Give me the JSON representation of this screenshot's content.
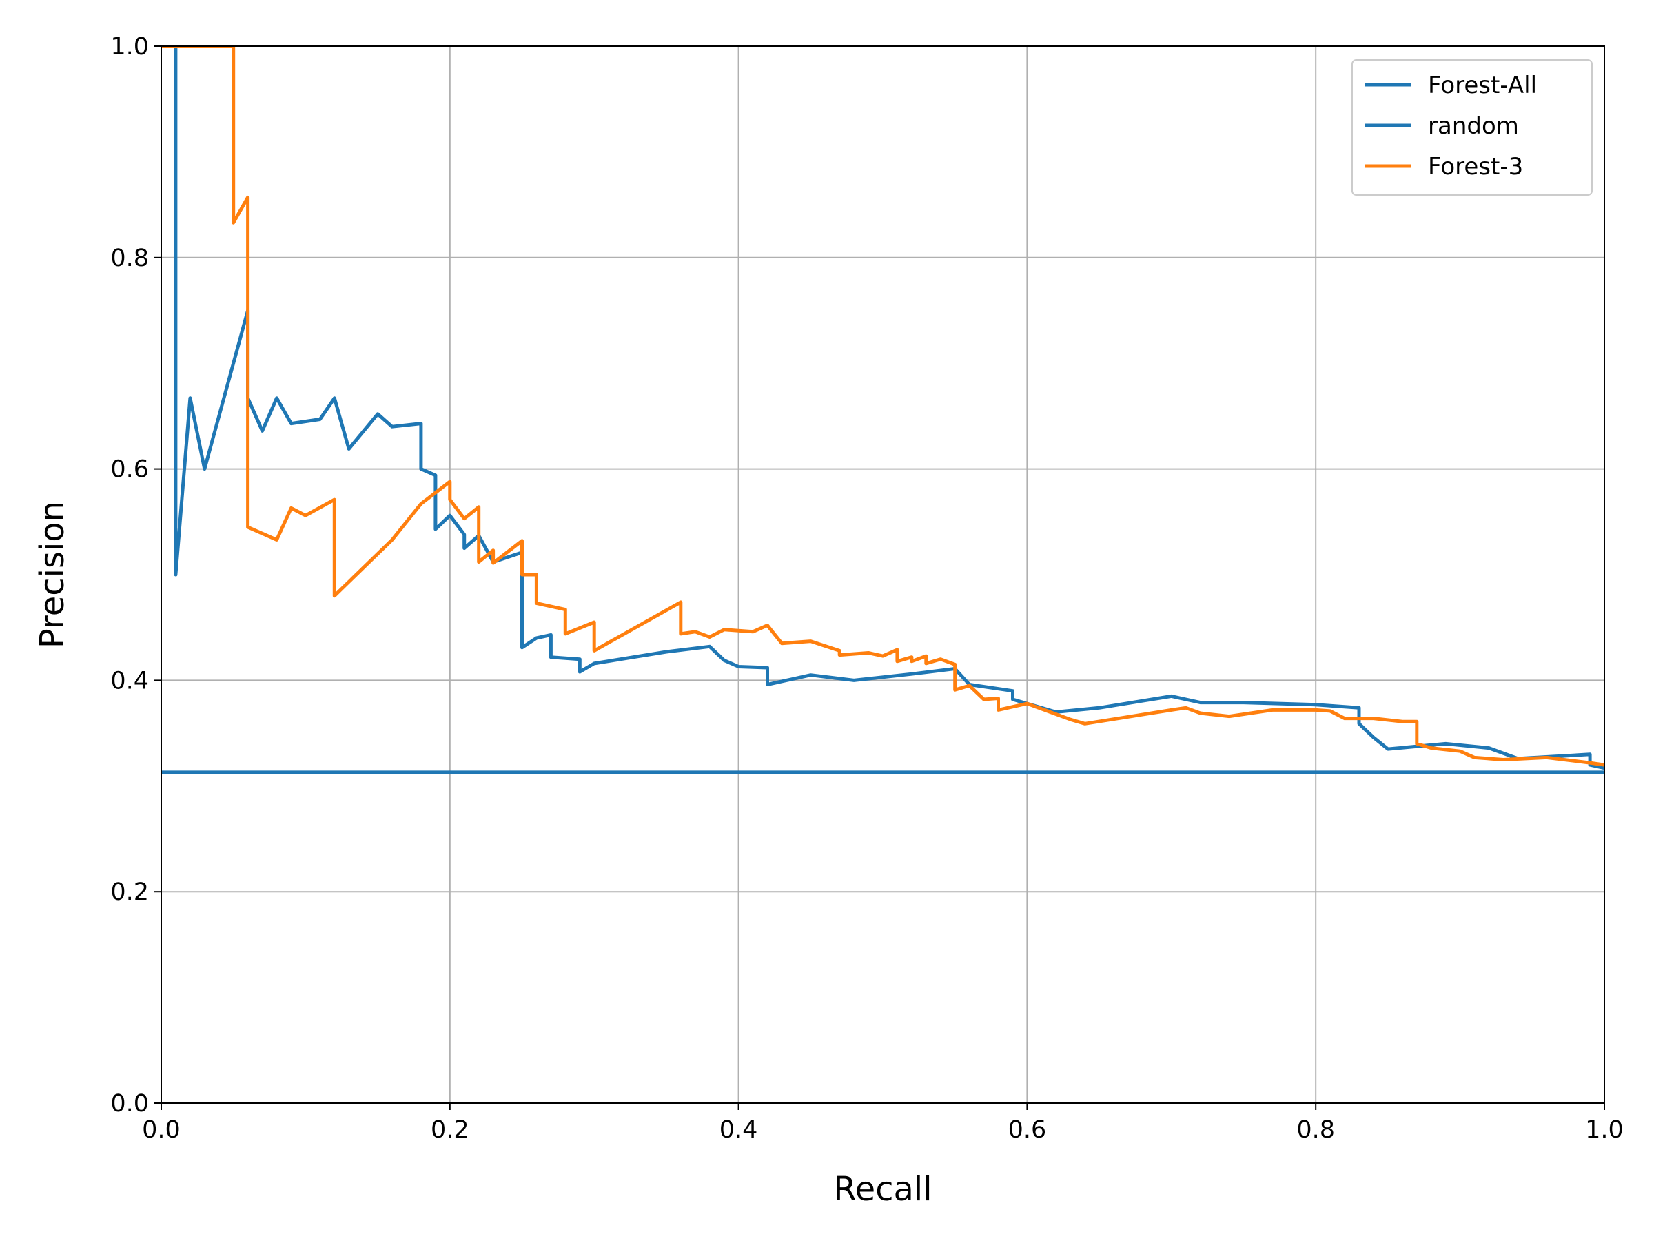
{
  "chart_data": {
    "type": "line",
    "title": "",
    "xlabel": "Recall",
    "ylabel": "Precision",
    "xlim": [
      0.0,
      1.0
    ],
    "ylim": [
      0.0,
      1.0
    ],
    "xticks": [
      "0.0",
      "0.2",
      "0.4",
      "0.6",
      "0.8",
      "1.0"
    ],
    "yticks": [
      "0.0",
      "0.2",
      "0.4",
      "0.6",
      "0.8",
      "1.0"
    ],
    "grid": true,
    "legend_position": "top-right",
    "series": [
      {
        "name": "Forest-All",
        "color": "#1f77b4",
        "points": [
          [
            0.01,
            1.0
          ],
          [
            0.01,
            0.5
          ],
          [
            0.02,
            0.667
          ],
          [
            0.03,
            0.6
          ],
          [
            0.06,
            0.75
          ],
          [
            0.06,
            0.667
          ],
          [
            0.07,
            0.636
          ],
          [
            0.08,
            0.667
          ],
          [
            0.09,
            0.643
          ],
          [
            0.11,
            0.647
          ],
          [
            0.12,
            0.667
          ],
          [
            0.13,
            0.619
          ],
          [
            0.15,
            0.652
          ],
          [
            0.16,
            0.64
          ],
          [
            0.18,
            0.643
          ],
          [
            0.18,
            0.6
          ],
          [
            0.19,
            0.594
          ],
          [
            0.19,
            0.543
          ],
          [
            0.2,
            0.556
          ],
          [
            0.21,
            0.538
          ],
          [
            0.21,
            0.525
          ],
          [
            0.22,
            0.537
          ],
          [
            0.23,
            0.512
          ],
          [
            0.25,
            0.521
          ],
          [
            0.25,
            0.431
          ],
          [
            0.26,
            0.44
          ],
          [
            0.27,
            0.443
          ],
          [
            0.27,
            0.422
          ],
          [
            0.29,
            0.42
          ],
          [
            0.29,
            0.408
          ],
          [
            0.3,
            0.416
          ],
          [
            0.35,
            0.427
          ],
          [
            0.38,
            0.432
          ],
          [
            0.39,
            0.419
          ],
          [
            0.4,
            0.413
          ],
          [
            0.42,
            0.412
          ],
          [
            0.42,
            0.396
          ],
          [
            0.45,
            0.405
          ],
          [
            0.48,
            0.4
          ],
          [
            0.52,
            0.406
          ],
          [
            0.55,
            0.411
          ],
          [
            0.56,
            0.396
          ],
          [
            0.59,
            0.39
          ],
          [
            0.59,
            0.382
          ],
          [
            0.62,
            0.37
          ],
          [
            0.65,
            0.374
          ],
          [
            0.7,
            0.385
          ],
          [
            0.72,
            0.379
          ],
          [
            0.75,
            0.379
          ],
          [
            0.8,
            0.377
          ],
          [
            0.83,
            0.374
          ],
          [
            0.83,
            0.359
          ],
          [
            0.84,
            0.346
          ],
          [
            0.85,
            0.335
          ],
          [
            0.89,
            0.34
          ],
          [
            0.92,
            0.336
          ],
          [
            0.94,
            0.326
          ],
          [
            0.99,
            0.33
          ],
          [
            0.99,
            0.32
          ],
          [
            1.0,
            0.317
          ]
        ]
      },
      {
        "name": "random",
        "color": "#1f77b4",
        "points": [
          [
            0.0,
            0.313
          ],
          [
            1.0,
            0.313
          ]
        ]
      },
      {
        "name": "Forest-3",
        "color": "#ff7f0e",
        "points": [
          [
            0.0,
            1.0
          ],
          [
            0.05,
            1.0
          ],
          [
            0.05,
            0.833
          ],
          [
            0.06,
            0.857
          ],
          [
            0.06,
            0.545
          ],
          [
            0.08,
            0.533
          ],
          [
            0.09,
            0.563
          ],
          [
            0.1,
            0.556
          ],
          [
            0.12,
            0.571
          ],
          [
            0.12,
            0.48
          ],
          [
            0.16,
            0.533
          ],
          [
            0.18,
            0.567
          ],
          [
            0.2,
            0.588
          ],
          [
            0.2,
            0.571
          ],
          [
            0.21,
            0.553
          ],
          [
            0.22,
            0.564
          ],
          [
            0.22,
            0.512
          ],
          [
            0.23,
            0.523
          ],
          [
            0.23,
            0.511
          ],
          [
            0.25,
            0.532
          ],
          [
            0.25,
            0.5
          ],
          [
            0.26,
            0.5
          ],
          [
            0.26,
            0.473
          ],
          [
            0.28,
            0.467
          ],
          [
            0.28,
            0.444
          ],
          [
            0.3,
            0.455
          ],
          [
            0.3,
            0.428
          ],
          [
            0.36,
            0.474
          ],
          [
            0.36,
            0.444
          ],
          [
            0.37,
            0.446
          ],
          [
            0.38,
            0.441
          ],
          [
            0.39,
            0.448
          ],
          [
            0.41,
            0.446
          ],
          [
            0.42,
            0.452
          ],
          [
            0.43,
            0.435
          ],
          [
            0.45,
            0.437
          ],
          [
            0.47,
            0.428
          ],
          [
            0.47,
            0.424
          ],
          [
            0.49,
            0.426
          ],
          [
            0.5,
            0.423
          ],
          [
            0.51,
            0.429
          ],
          [
            0.51,
            0.418
          ],
          [
            0.52,
            0.422
          ],
          [
            0.52,
            0.418
          ],
          [
            0.53,
            0.423
          ],
          [
            0.53,
            0.416
          ],
          [
            0.54,
            0.42
          ],
          [
            0.55,
            0.415
          ],
          [
            0.55,
            0.391
          ],
          [
            0.56,
            0.395
          ],
          [
            0.57,
            0.382
          ],
          [
            0.58,
            0.383
          ],
          [
            0.58,
            0.372
          ],
          [
            0.6,
            0.378
          ],
          [
            0.63,
            0.363
          ],
          [
            0.64,
            0.359
          ],
          [
            0.7,
            0.372
          ],
          [
            0.71,
            0.374
          ],
          [
            0.72,
            0.369
          ],
          [
            0.74,
            0.366
          ],
          [
            0.77,
            0.372
          ],
          [
            0.8,
            0.372
          ],
          [
            0.81,
            0.371
          ],
          [
            0.82,
            0.364
          ],
          [
            0.84,
            0.364
          ],
          [
            0.86,
            0.361
          ],
          [
            0.87,
            0.361
          ],
          [
            0.87,
            0.34
          ],
          [
            0.88,
            0.336
          ],
          [
            0.9,
            0.333
          ],
          [
            0.91,
            0.327
          ],
          [
            0.93,
            0.325
          ],
          [
            0.96,
            0.327
          ],
          [
            0.99,
            0.322
          ],
          [
            1.0,
            0.32
          ]
        ]
      }
    ]
  }
}
